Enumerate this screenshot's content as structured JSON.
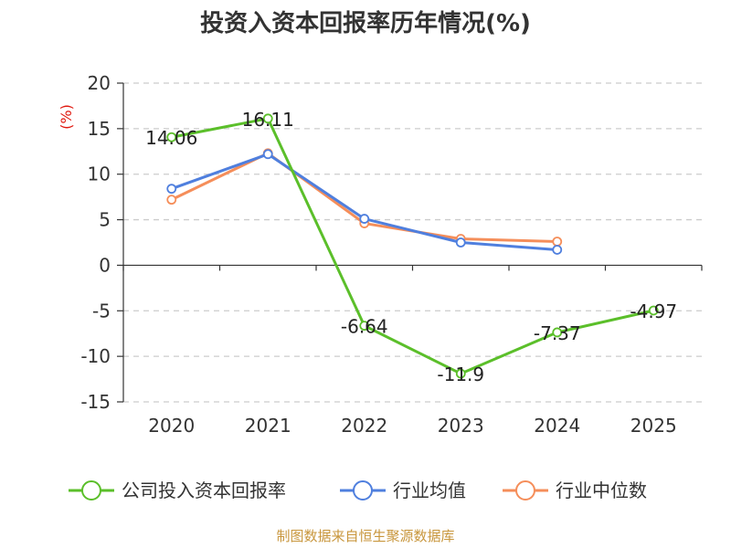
{
  "chart_data": {
    "type": "line",
    "title": "投资入资本回报率历年情况(%)",
    "categories": [
      "2020",
      "2021",
      "2022",
      "2023",
      "2024",
      "2025"
    ],
    "ylabel": "(%)",
    "ylim": [
      -15,
      20
    ],
    "yticks": [
      20,
      15,
      10,
      5,
      0,
      -5,
      -10,
      -15
    ],
    "grid": true,
    "legend_position": "bottom",
    "series": [
      {
        "name": "公司投入资本回报率",
        "color": "#5bbf2a",
        "values": [
          14.06,
          16.11,
          -6.64,
          -11.9,
          -7.37,
          -4.97
        ],
        "labels": [
          "14.06",
          "16.11",
          "-6.64",
          "-11.9",
          "-7.37",
          "-4.97"
        ]
      },
      {
        "name": "行业均值",
        "color": "#4f7fde",
        "values": [
          8.4,
          12.2,
          5.1,
          2.5,
          1.7,
          null
        ]
      },
      {
        "name": "行业中位数",
        "color": "#f58e5a",
        "values": [
          7.2,
          12.3,
          4.6,
          2.9,
          2.6,
          null
        ]
      }
    ]
  },
  "source": "制图数据来自恒生聚源数据库"
}
